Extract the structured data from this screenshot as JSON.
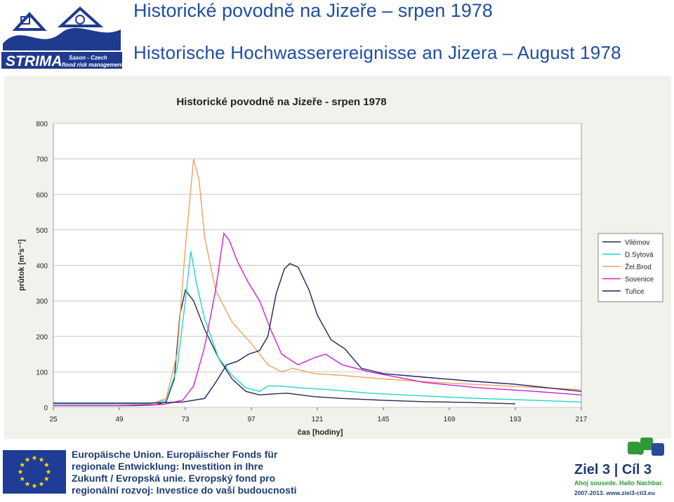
{
  "header": {
    "title_cz": "Historické povodně na Jizeře – srpen 1978",
    "title_de": "Historische Hochwasserereignisse an Jizera – August 1978",
    "logo_text": "STRIMA",
    "logo_sub1": "Saxon - Czech",
    "logo_sub2": "flood risk management"
  },
  "footer": {
    "lines": [
      "Europäische Union. Europäischer Fonds für",
      "regionale Entwicklung: Investition in Ihre",
      "Zukunft / Evropská unie. Evropský fond pro",
      "regionální rozvoj: Investice do vaší budoucnosti"
    ],
    "ziel_title": "Ziel 3 | Cíl 3",
    "ziel_sub": "Ahoj sousede. Hallo Nachbar.",
    "ziel_url": "2007-2013. www.ziel3-cil3.eu"
  },
  "colors": {
    "title": "#1f4ea3",
    "Vilémov": "#2a2a4a",
    "D.Sytová": "#1fd6d0",
    "Žel.Brod": "#f0a060",
    "Sovenice": "#d020d0",
    "Tuřice": "#202060"
  },
  "chart_data": {
    "type": "line",
    "title": "Historické povodně na Jizeře - srpen 1978",
    "xlabel": "čas [hodiny]",
    "ylabel": "průtok [m³s⁻¹]",
    "xlim": [
      25,
      217
    ],
    "ylim": [
      0,
      800
    ],
    "xticks": [
      25,
      49,
      73,
      97,
      121,
      145,
      169,
      193,
      217
    ],
    "yticks": [
      0,
      100,
      200,
      300,
      400,
      500,
      600,
      700,
      800
    ],
    "legend_position": "right",
    "series": [
      {
        "name": "Vilémov",
        "points": [
          [
            25,
            5
          ],
          [
            40,
            5
          ],
          [
            55,
            5
          ],
          [
            62,
            7
          ],
          [
            66,
            15
          ],
          [
            69,
            80
          ],
          [
            71,
            260
          ],
          [
            73,
            330
          ],
          [
            76,
            300
          ],
          [
            80,
            220
          ],
          [
            85,
            140
          ],
          [
            90,
            80
          ],
          [
            95,
            45
          ],
          [
            100,
            35
          ],
          [
            105,
            38
          ],
          [
            110,
            40
          ],
          [
            120,
            30
          ],
          [
            130,
            25
          ],
          [
            145,
            20
          ],
          [
            160,
            16
          ],
          [
            175,
            14
          ],
          [
            193,
            10
          ]
        ]
      },
      {
        "name": "D.Sytová",
        "points": [
          [
            25,
            10
          ],
          [
            45,
            10
          ],
          [
            60,
            10
          ],
          [
            66,
            20
          ],
          [
            70,
            110
          ],
          [
            73,
            300
          ],
          [
            75,
            440
          ],
          [
            77,
            350
          ],
          [
            80,
            250
          ],
          [
            85,
            140
          ],
          [
            90,
            90
          ],
          [
            95,
            55
          ],
          [
            100,
            45
          ],
          [
            103,
            60
          ],
          [
            107,
            60
          ],
          [
            115,
            55
          ],
          [
            125,
            50
          ],
          [
            140,
            40
          ],
          [
            160,
            32
          ],
          [
            180,
            25
          ],
          [
            200,
            20
          ],
          [
            217,
            15
          ]
        ]
      },
      {
        "name": "Žel.Brod",
        "points": [
          [
            25,
            5
          ],
          [
            45,
            5
          ],
          [
            60,
            8
          ],
          [
            66,
            25
          ],
          [
            70,
            150
          ],
          [
            73,
            450
          ],
          [
            76,
            700
          ],
          [
            78,
            640
          ],
          [
            80,
            480
          ],
          [
            84,
            330
          ],
          [
            90,
            240
          ],
          [
            97,
            180
          ],
          [
            103,
            120
          ],
          [
            108,
            100
          ],
          [
            112,
            110
          ],
          [
            120,
            95
          ],
          [
            130,
            90
          ],
          [
            145,
            80
          ],
          [
            165,
            70
          ],
          [
            190,
            60
          ],
          [
            217,
            50
          ]
        ]
      },
      {
        "name": "Sovenice",
        "points": [
          [
            25,
            5
          ],
          [
            50,
            5
          ],
          [
            65,
            8
          ],
          [
            72,
            20
          ],
          [
            76,
            60
          ],
          [
            80,
            170
          ],
          [
            84,
            330
          ],
          [
            87,
            490
          ],
          [
            89,
            470
          ],
          [
            92,
            410
          ],
          [
            96,
            350
          ],
          [
            100,
            300
          ],
          [
            104,
            220
          ],
          [
            108,
            150
          ],
          [
            114,
            120
          ],
          [
            120,
            140
          ],
          [
            124,
            150
          ],
          [
            130,
            120
          ],
          [
            140,
            100
          ],
          [
            160,
            70
          ],
          [
            180,
            55
          ],
          [
            200,
            45
          ],
          [
            217,
            35
          ]
        ]
      },
      {
        "name": "Tuřice",
        "points": [
          [
            25,
            12
          ],
          [
            60,
            12
          ],
          [
            72,
            15
          ],
          [
            80,
            25
          ],
          [
            84,
            70
          ],
          [
            88,
            120
          ],
          [
            92,
            130
          ],
          [
            96,
            150
          ],
          [
            100,
            160
          ],
          [
            103,
            200
          ],
          [
            106,
            320
          ],
          [
            109,
            390
          ],
          [
            111,
            405
          ],
          [
            114,
            395
          ],
          [
            118,
            330
          ],
          [
            121,
            260
          ],
          [
            126,
            190
          ],
          [
            131,
            165
          ],
          [
            137,
            110
          ],
          [
            145,
            95
          ],
          [
            160,
            85
          ],
          [
            175,
            75
          ],
          [
            193,
            65
          ],
          [
            205,
            55
          ],
          [
            217,
            45
          ]
        ]
      }
    ]
  }
}
